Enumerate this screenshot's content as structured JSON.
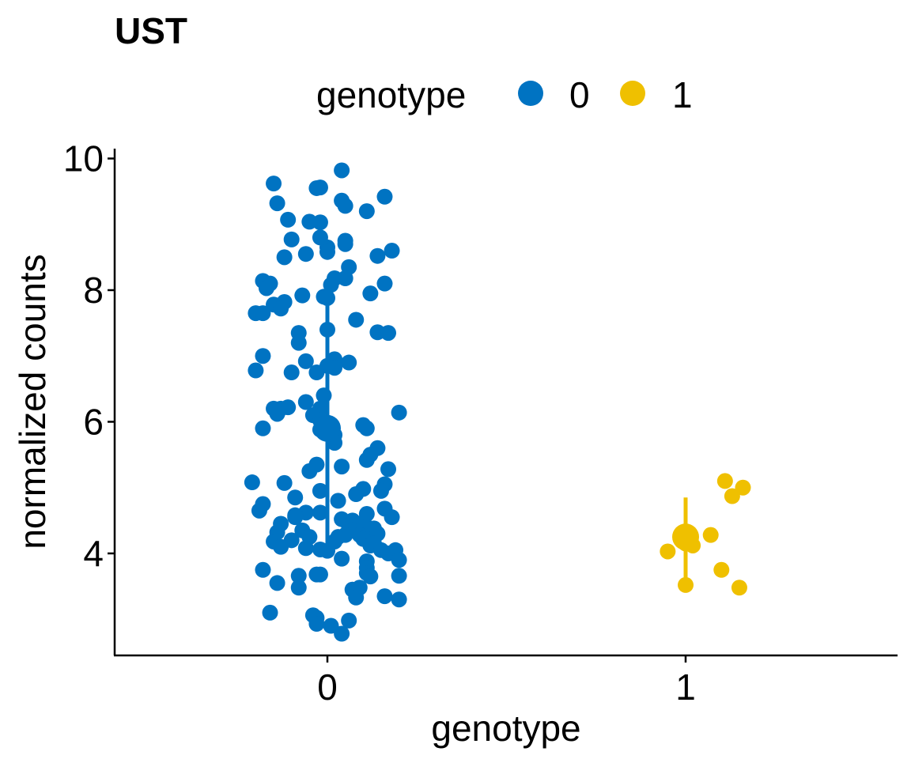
{
  "chart_data": {
    "type": "scatter",
    "title": "UST",
    "xlabel": "genotype",
    "ylabel": "normalized counts",
    "categories": [
      "0",
      "1"
    ],
    "ylim": [
      2.45,
      10.15
    ],
    "y_ticks": [
      "4",
      "6",
      "8",
      "10"
    ],
    "grid": false,
    "legend": {
      "title": "genotype",
      "position": "top",
      "entries": [
        "0",
        "1"
      ]
    },
    "colors": {
      "0": "#0073C2",
      "1": "#EFC000"
    },
    "series": [
      {
        "name": "0",
        "color": "#0073C2",
        "summary": {
          "mean": 5.9,
          "lower": 4.1,
          "upper": 8.0
        },
        "points": [
          {
            "x": 0.04,
            "y": 9.82
          },
          {
            "x": -0.15,
            "y": 9.62
          },
          {
            "x": -0.02,
            "y": 9.56
          },
          {
            "x": -0.03,
            "y": 9.55
          },
          {
            "x": 0.16,
            "y": 9.42
          },
          {
            "x": 0.04,
            "y": 9.36
          },
          {
            "x": -0.14,
            "y": 9.32
          },
          {
            "x": 0.05,
            "y": 9.28
          },
          {
            "x": 0.11,
            "y": 9.2
          },
          {
            "x": -0.11,
            "y": 9.07
          },
          {
            "x": -0.05,
            "y": 9.04
          },
          {
            "x": -0.02,
            "y": 9.03
          },
          {
            "x": -0.02,
            "y": 8.8
          },
          {
            "x": -0.1,
            "y": 8.77
          },
          {
            "x": 0.05,
            "y": 8.75
          },
          {
            "x": 0.05,
            "y": 8.7
          },
          {
            "x": 0.0,
            "y": 8.65
          },
          {
            "x": 0.18,
            "y": 8.6
          },
          {
            "x": 0.0,
            "y": 8.58
          },
          {
            "x": -0.06,
            "y": 8.55
          },
          {
            "x": 0.14,
            "y": 8.52
          },
          {
            "x": -0.12,
            "y": 8.5
          },
          {
            "x": 0.06,
            "y": 8.35
          },
          {
            "x": 0.02,
            "y": 8.18
          },
          {
            "x": 0.05,
            "y": 8.18
          },
          {
            "x": -0.18,
            "y": 8.14
          },
          {
            "x": -0.16,
            "y": 8.1
          },
          {
            "x": 0.16,
            "y": 8.1
          },
          {
            "x": 0.01,
            "y": 8.08
          },
          {
            "x": -0.17,
            "y": 8.03
          },
          {
            "x": 0.12,
            "y": 7.95
          },
          {
            "x": -0.07,
            "y": 7.92
          },
          {
            "x": -0.01,
            "y": 7.9
          },
          {
            "x": 0.0,
            "y": 7.88
          },
          {
            "x": -0.12,
            "y": 7.82
          },
          {
            "x": -0.15,
            "y": 7.78
          },
          {
            "x": -0.13,
            "y": 7.72
          },
          {
            "x": -0.2,
            "y": 7.65
          },
          {
            "x": -0.18,
            "y": 7.65
          },
          {
            "x": 0.08,
            "y": 7.55
          },
          {
            "x": 0.0,
            "y": 7.4
          },
          {
            "x": 0.14,
            "y": 7.36
          },
          {
            "x": 0.17,
            "y": 7.35
          },
          {
            "x": -0.08,
            "y": 7.35
          },
          {
            "x": -0.08,
            "y": 7.2
          },
          {
            "x": -0.18,
            "y": 7.0
          },
          {
            "x": 0.02,
            "y": 6.95
          },
          {
            "x": -0.06,
            "y": 6.92
          },
          {
            "x": 0.06,
            "y": 6.9
          },
          {
            "x": 0.0,
            "y": 6.85
          },
          {
            "x": 0.02,
            "y": 6.82
          },
          {
            "x": -0.2,
            "y": 6.78
          },
          {
            "x": -0.1,
            "y": 6.75
          },
          {
            "x": -0.03,
            "y": 6.75
          },
          {
            "x": -0.01,
            "y": 6.4
          },
          {
            "x": -0.06,
            "y": 6.3
          },
          {
            "x": -0.11,
            "y": 6.22
          },
          {
            "x": -0.13,
            "y": 6.2
          },
          {
            "x": -0.15,
            "y": 6.2
          },
          {
            "x": -0.02,
            "y": 6.2
          },
          {
            "x": -0.14,
            "y": 6.12
          },
          {
            "x": 0.2,
            "y": 6.14
          },
          {
            "x": -0.04,
            "y": 6.1
          },
          {
            "x": -0.02,
            "y": 6.02
          },
          {
            "x": 0.1,
            "y": 5.95
          },
          {
            "x": 0.11,
            "y": 5.9
          },
          {
            "x": -0.18,
            "y": 5.9
          },
          {
            "x": -0.02,
            "y": 5.88
          },
          {
            "x": 0.0,
            "y": 5.85
          },
          {
            "x": 0.0,
            "y": 5.82
          },
          {
            "x": 0.02,
            "y": 5.8
          },
          {
            "x": 0.02,
            "y": 5.68
          },
          {
            "x": 0.14,
            "y": 5.6
          },
          {
            "x": 0.12,
            "y": 5.5
          },
          {
            "x": 0.11,
            "y": 5.42
          },
          {
            "x": -0.03,
            "y": 5.35
          },
          {
            "x": 0.04,
            "y": 5.32
          },
          {
            "x": 0.17,
            "y": 5.28
          },
          {
            "x": -0.05,
            "y": 5.25
          },
          {
            "x": 0.16,
            "y": 5.05
          },
          {
            "x": -0.21,
            "y": 5.08
          },
          {
            "x": -0.12,
            "y": 5.07
          },
          {
            "x": 0.1,
            "y": 4.98
          },
          {
            "x": -0.02,
            "y": 4.95
          },
          {
            "x": 0.15,
            "y": 4.95
          },
          {
            "x": 0.08,
            "y": 4.9
          },
          {
            "x": -0.09,
            "y": 4.85
          },
          {
            "x": 0.03,
            "y": 4.8
          },
          {
            "x": -0.18,
            "y": 4.75
          },
          {
            "x": 0.16,
            "y": 4.68
          },
          {
            "x": -0.19,
            "y": 4.65
          },
          {
            "x": -0.06,
            "y": 4.62
          },
          {
            "x": -0.02,
            "y": 4.62
          },
          {
            "x": 0.11,
            "y": 4.6
          },
          {
            "x": -0.09,
            "y": 4.58
          },
          {
            "x": -0.09,
            "y": 4.55
          },
          {
            "x": 0.18,
            "y": 4.55
          },
          {
            "x": 0.04,
            "y": 4.52
          },
          {
            "x": 0.07,
            "y": 4.5
          },
          {
            "x": -0.13,
            "y": 4.45
          },
          {
            "x": 0.09,
            "y": 4.45
          },
          {
            "x": 0.06,
            "y": 4.42
          },
          {
            "x": 0.11,
            "y": 4.4
          },
          {
            "x": 0.13,
            "y": 4.38
          },
          {
            "x": -0.07,
            "y": 4.35
          },
          {
            "x": 0.07,
            "y": 4.35
          },
          {
            "x": -0.14,
            "y": 4.32
          },
          {
            "x": 0.14,
            "y": 4.3
          },
          {
            "x": 0.05,
            "y": 4.28
          },
          {
            "x": 0.09,
            "y": 4.28
          },
          {
            "x": -0.05,
            "y": 4.25
          },
          {
            "x": 0.03,
            "y": 4.25
          },
          {
            "x": 0.1,
            "y": 4.22
          },
          {
            "x": -0.1,
            "y": 4.2
          },
          {
            "x": -0.15,
            "y": 4.18
          },
          {
            "x": 0.02,
            "y": 4.18
          },
          {
            "x": 0.13,
            "y": 4.15
          },
          {
            "x": 0.12,
            "y": 4.12
          },
          {
            "x": -0.13,
            "y": 4.1
          },
          {
            "x": -0.06,
            "y": 4.08
          },
          {
            "x": -0.02,
            "y": 4.06
          },
          {
            "x": 0.15,
            "y": 4.05
          },
          {
            "x": 0.19,
            "y": 4.05
          },
          {
            "x": 0.0,
            "y": 4.04
          },
          {
            "x": 0.17,
            "y": 4.0
          },
          {
            "x": 0.04,
            "y": 3.92
          },
          {
            "x": 0.2,
            "y": 3.9
          },
          {
            "x": 0.11,
            "y": 3.88
          },
          {
            "x": 0.11,
            "y": 3.78
          },
          {
            "x": -0.18,
            "y": 3.75
          },
          {
            "x": 0.11,
            "y": 3.7
          },
          {
            "x": -0.03,
            "y": 3.68
          },
          {
            "x": -0.08,
            "y": 3.66
          },
          {
            "x": -0.02,
            "y": 3.68
          },
          {
            "x": 0.2,
            "y": 3.66
          },
          {
            "x": 0.12,
            "y": 3.65
          },
          {
            "x": -0.14,
            "y": 3.55
          },
          {
            "x": 0.09,
            "y": 3.48
          },
          {
            "x": -0.08,
            "y": 3.48
          },
          {
            "x": 0.07,
            "y": 3.45
          },
          {
            "x": 0.16,
            "y": 3.35
          },
          {
            "x": 0.08,
            "y": 3.33
          },
          {
            "x": 0.2,
            "y": 3.3
          },
          {
            "x": -0.16,
            "y": 3.1
          },
          {
            "x": -0.04,
            "y": 3.06
          },
          {
            "x": -0.03,
            "y": 3.02
          },
          {
            "x": 0.06,
            "y": 2.98
          },
          {
            "x": -0.03,
            "y": 2.93
          },
          {
            "x": 0.01,
            "y": 2.9
          },
          {
            "x": 0.04,
            "y": 2.78
          }
        ]
      },
      {
        "name": "1",
        "color": "#EFC000",
        "summary": {
          "mean": 4.25,
          "lower": 3.6,
          "upper": 4.85
        },
        "points": [
          {
            "x": 0.11,
            "y": 5.1
          },
          {
            "x": 0.16,
            "y": 5.0
          },
          {
            "x": 0.13,
            "y": 4.87
          },
          {
            "x": 0.07,
            "y": 4.28
          },
          {
            "x": 0.0,
            "y": 4.15
          },
          {
            "x": 0.02,
            "y": 4.12
          },
          {
            "x": -0.05,
            "y": 4.03
          },
          {
            "x": 0.1,
            "y": 3.75
          },
          {
            "x": 0.0,
            "y": 3.52
          },
          {
            "x": 0.15,
            "y": 3.48
          }
        ]
      }
    ]
  }
}
